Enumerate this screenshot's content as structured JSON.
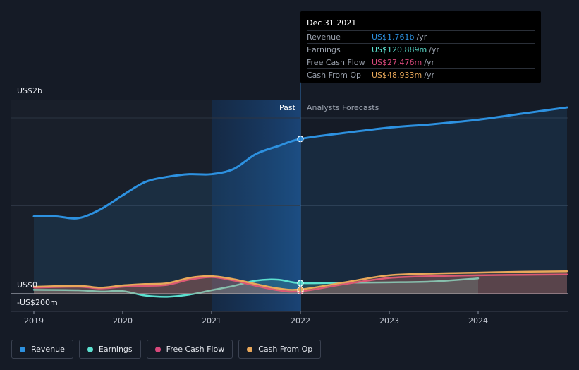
{
  "chart_data": {
    "type": "area",
    "x_ticks": [
      "2019",
      "2020",
      "2021",
      "2022",
      "2023",
      "2024"
    ],
    "y_labels": {
      "top": "US$2b",
      "zero": "US$0",
      "bottom": "-US$200m"
    },
    "ylim": [
      -200,
      2200
    ],
    "region_labels": {
      "past": "Past",
      "forecast": "Analysts Forecasts"
    },
    "divider_x": 2022.0,
    "series": [
      {
        "name": "Revenue",
        "color": "#2d91e0",
        "x": [
          2019.0,
          2019.25,
          2019.5,
          2019.75,
          2020.0,
          2020.25,
          2020.5,
          2020.75,
          2021.0,
          2021.25,
          2021.5,
          2021.75,
          2022.0,
          2022.5,
          2023.0,
          2023.5,
          2024.0,
          2024.5,
          2025.0
        ],
        "y": [
          880,
          880,
          860,
          960,
          1120,
          1270,
          1330,
          1360,
          1360,
          1420,
          1590,
          1680,
          1761,
          1830,
          1890,
          1930,
          1980,
          2050,
          2120
        ]
      },
      {
        "name": "Earnings",
        "color": "#5ce1d0",
        "x": [
          2019.0,
          2019.5,
          2019.75,
          2020.0,
          2020.25,
          2020.5,
          2020.75,
          2021.0,
          2021.25,
          2021.5,
          2021.75,
          2022.0,
          2022.5,
          2023.0,
          2023.5,
          2024.0
        ],
        "y": [
          45,
          40,
          25,
          30,
          -20,
          -35,
          -10,
          40,
          90,
          150,
          160,
          121,
          125,
          130,
          140,
          175
        ]
      },
      {
        "name": "Free Cash Flow",
        "color": "#d8487b",
        "x": [
          2019.0,
          2019.5,
          2019.75,
          2020.0,
          2020.25,
          2020.5,
          2020.75,
          2021.0,
          2021.25,
          2021.5,
          2021.75,
          2022.0,
          2022.5,
          2023.0,
          2023.5,
          2024.0,
          2024.5,
          2025.0
        ],
        "y": [
          70,
          80,
          60,
          80,
          90,
          100,
          160,
          190,
          150,
          90,
          40,
          27,
          110,
          180,
          200,
          210,
          215,
          220
        ]
      },
      {
        "name": "Cash From Op",
        "color": "#e9a85a",
        "x": [
          2019.0,
          2019.5,
          2019.75,
          2020.0,
          2020.25,
          2020.5,
          2020.75,
          2021.0,
          2021.25,
          2021.5,
          2021.75,
          2022.0,
          2022.5,
          2023.0,
          2023.5,
          2024.0,
          2024.5,
          2025.0
        ],
        "y": [
          80,
          90,
          70,
          95,
          110,
          120,
          180,
          200,
          165,
          110,
          60,
          49,
          130,
          210,
          230,
          240,
          250,
          255
        ]
      }
    ],
    "tooltip": {
      "date": "Dec 31 2021",
      "rows": [
        {
          "name": "Revenue",
          "value": "US$1.761b",
          "unit": "/yr",
          "color": "#2d91e0"
        },
        {
          "name": "Earnings",
          "value": "US$120.889m",
          "unit": "/yr",
          "color": "#5ce1d0"
        },
        {
          "name": "Free Cash Flow",
          "value": "US$27.476m",
          "unit": "/yr",
          "color": "#d8487b"
        },
        {
          "name": "Cash From Op",
          "value": "US$48.933m",
          "unit": "/yr",
          "color": "#e9a85a"
        }
      ]
    }
  },
  "legend": [
    {
      "label": "Revenue",
      "color": "#2d91e0"
    },
    {
      "label": "Earnings",
      "color": "#5ce1d0"
    },
    {
      "label": "Free Cash Flow",
      "color": "#d8487b"
    },
    {
      "label": "Cash From Op",
      "color": "#e9a85a"
    }
  ]
}
